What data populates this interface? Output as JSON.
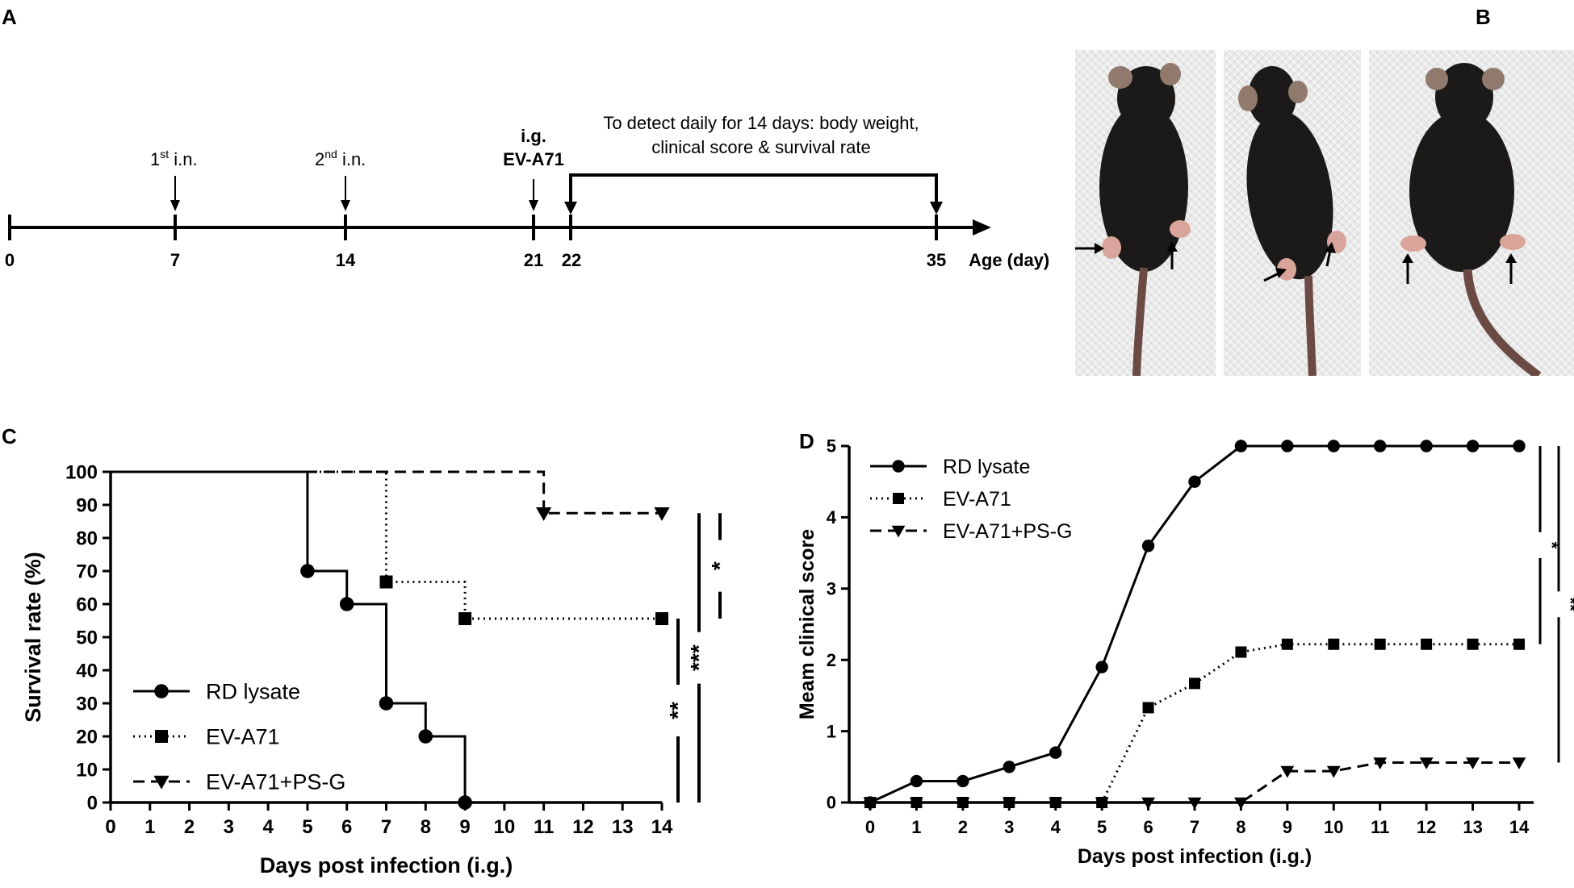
{
  "panels": {
    "A": "A",
    "B": "B",
    "C": "C",
    "D": "D"
  },
  "timeline": {
    "ticks": [
      "0",
      "7",
      "14",
      "21",
      "22",
      "35"
    ],
    "axis_label": "Age (day)",
    "events": [
      {
        "label": "1st i.n.",
        "base": "1",
        "sup": "st",
        "rest": " i.n.",
        "day": 7
      },
      {
        "label": "2nd i.n.",
        "base": "2",
        "sup": "nd",
        "rest": " i.n.",
        "day": 14
      },
      {
        "label": "i.g. EV-A71",
        "line1": "i.g.",
        "line2": "EV-A71",
        "day": 21
      }
    ],
    "detect_text_line1": "To detect daily for 14 days: body weight,",
    "detect_text_line2": "clinical score & survival rate",
    "detect_range": [
      22,
      35
    ]
  },
  "photos": {
    "count": 3,
    "note_arrows": true
  },
  "colors": {
    "line": "#000000",
    "mouse": "#1c1a19",
    "paw": "#d9a49a",
    "photo_bg": "#e9e9e9"
  },
  "chart_data": [
    {
      "type": "line",
      "chart_kind": "survival-step",
      "xlabel": "Days post infection (i.g.)",
      "ylabel": "Survival rate (%)",
      "xlim": [
        0,
        14
      ],
      "ylim": [
        0,
        100
      ],
      "x_ticks": [
        0,
        1,
        2,
        3,
        4,
        5,
        6,
        7,
        8,
        9,
        10,
        11,
        12,
        13,
        14
      ],
      "y_ticks": [
        0,
        10,
        20,
        30,
        40,
        50,
        60,
        70,
        80,
        90,
        100
      ],
      "legend_position": "bottom-left",
      "series": [
        {
          "name": "RD lysate",
          "style": "solid",
          "marker": "circle",
          "steps": [
            [
              0,
              100
            ],
            [
              5,
              100
            ],
            [
              5,
              70
            ],
            [
              6,
              70
            ],
            [
              6,
              60
            ],
            [
              7,
              60
            ],
            [
              7,
              30
            ],
            [
              8,
              30
            ],
            [
              8,
              20
            ],
            [
              9,
              20
            ],
            [
              9,
              0
            ]
          ],
          "marker_points": [
            [
              5,
              70
            ],
            [
              6,
              60
            ],
            [
              7,
              30
            ],
            [
              8,
              20
            ],
            [
              9,
              0
            ]
          ]
        },
        {
          "name": "EV-A71",
          "style": "dotted",
          "marker": "square",
          "steps": [
            [
              0,
              100
            ],
            [
              7,
              100
            ],
            [
              7,
              66.7
            ],
            [
              9,
              66.7
            ],
            [
              9,
              55.6
            ],
            [
              14,
              55.6
            ]
          ],
          "marker_points": [
            [
              7,
              66.7
            ],
            [
              9,
              55.6
            ],
            [
              14,
              55.6
            ]
          ]
        },
        {
          "name": "EV-A71+PS-G",
          "style": "dashed",
          "marker": "triangle-down",
          "steps": [
            [
              0,
              100
            ],
            [
              11,
              100
            ],
            [
              11,
              87.5
            ],
            [
              14,
              87.5
            ]
          ],
          "marker_points": [
            [
              11,
              87.5
            ],
            [
              14,
              87.5
            ]
          ]
        }
      ],
      "significance": [
        {
          "label": "*",
          "y_range": [
            55.6,
            87.5
          ],
          "x_offset": 3
        },
        {
          "label": "***",
          "y_range": [
            0,
            87.5
          ],
          "x_offset": 2
        },
        {
          "label": "**",
          "y_range": [
            0,
            55.6
          ],
          "x_offset": 1
        }
      ]
    },
    {
      "type": "line",
      "xlabel": "Days post infection (i.g.)",
      "ylabel": "Meam clinical score",
      "xlim": [
        0,
        14
      ],
      "ylim": [
        0,
        5
      ],
      "x_ticks": [
        0,
        1,
        2,
        3,
        4,
        5,
        6,
        7,
        8,
        9,
        10,
        11,
        12,
        13,
        14
      ],
      "y_ticks": [
        0,
        1,
        2,
        3,
        4,
        5
      ],
      "legend_position": "top-left",
      "x": [
        0,
        1,
        2,
        3,
        4,
        5,
        6,
        7,
        8,
        9,
        10,
        11,
        12,
        13,
        14
      ],
      "series": [
        {
          "name": "RD lysate",
          "style": "solid",
          "marker": "circle",
          "values": [
            0,
            0.3,
            0.3,
            0.5,
            0.7,
            1.9,
            3.6,
            4.5,
            5,
            5,
            5,
            5,
            5,
            5,
            5
          ]
        },
        {
          "name": "EV-A71",
          "style": "dotted",
          "marker": "square",
          "values": [
            0,
            0,
            0,
            0,
            0,
            0,
            1.33,
            1.67,
            2.11,
            2.22,
            2.22,
            2.22,
            2.22,
            2.22,
            2.22
          ]
        },
        {
          "name": "EV-A71+PS-G",
          "style": "dashed",
          "marker": "triangle-down",
          "values": [
            0,
            0,
            0,
            0,
            0,
            0,
            0,
            0,
            0,
            0.44,
            0.44,
            0.56,
            0.56,
            0.56,
            0.56
          ]
        }
      ],
      "significance": [
        {
          "label": "*",
          "y_range": [
            2.22,
            5
          ],
          "x_offset": 1
        },
        {
          "label": "**",
          "y_range": [
            0.56,
            5
          ],
          "x_offset": 2
        }
      ]
    }
  ]
}
